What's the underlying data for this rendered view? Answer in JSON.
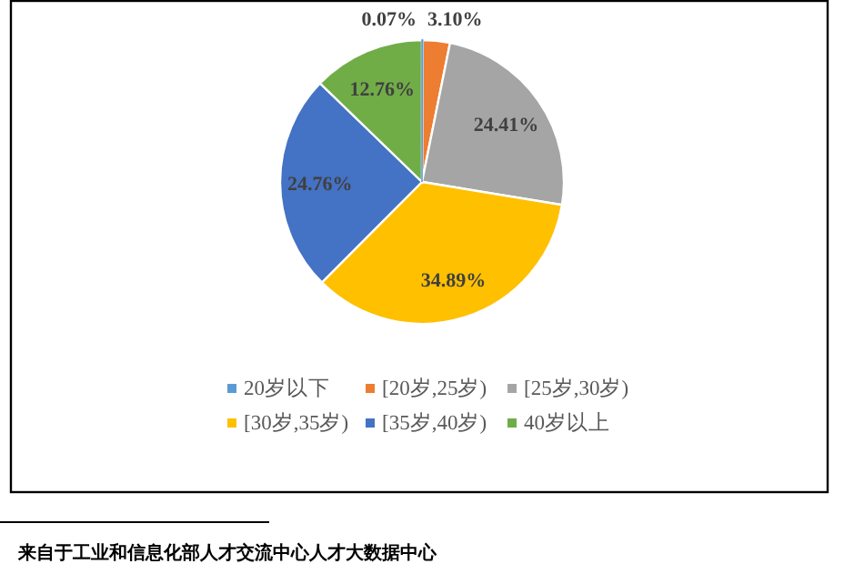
{
  "chart_data": {
    "type": "pie",
    "categories": [
      "20岁以下",
      "[20岁,25岁)",
      "[25岁,30岁)",
      "[30岁,35岁)",
      "[35岁,40岁)",
      "40岁以上"
    ],
    "values": [
      0.07,
      3.1,
      24.41,
      34.89,
      24.76,
      12.76
    ],
    "colors": [
      "#5b9bd5",
      "#ed7d31",
      "#a5a5a5",
      "#ffc000",
      "#4472c4",
      "#70ad47"
    ],
    "value_labels": [
      "0.07%",
      "3.10%",
      "24.41%",
      "34.89%",
      "24.76%",
      "12.76%"
    ],
    "legend": "bottom",
    "annotations": [
      "来自于工业和信息化部人才交流中心人才大数据中心"
    ]
  }
}
